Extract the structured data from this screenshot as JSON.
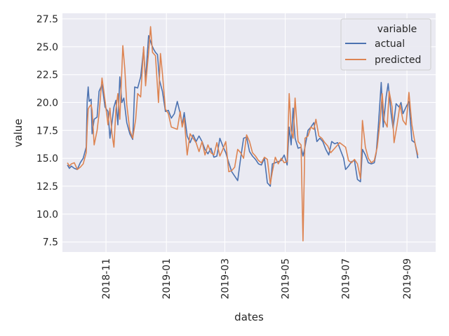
{
  "chart_data": {
    "type": "line",
    "xlabel": "dates",
    "ylabel": "value",
    "x_ticks": [
      "2018-11",
      "2019-01",
      "2019-03",
      "2019-05",
      "2019-07",
      "2019-09"
    ],
    "x_tick_dates": [
      "2018-11-01",
      "2019-01-01",
      "2019-03-01",
      "2019-05-01",
      "2019-07-01",
      "2019-09-01"
    ],
    "y_ticks": [
      7.5,
      10.0,
      12.5,
      15.0,
      17.5,
      20.0,
      22.5,
      25.0,
      27.5
    ],
    "xlim": [
      "2018-09-18",
      "2019-09-30"
    ],
    "ylim": [
      6.6,
      28.0
    ],
    "grid": true,
    "legend": {
      "title": "variable",
      "position": "top-right"
    },
    "series": [
      {
        "name": "actual",
        "color": "#4c72b0",
        "points": [
          [
            "2018-09-23",
            14.4
          ],
          [
            "2018-09-25",
            14.1
          ],
          [
            "2018-09-27",
            14.3
          ],
          [
            "2018-09-30",
            14.1
          ],
          [
            "2018-10-03",
            14.0
          ],
          [
            "2018-10-06",
            14.6
          ],
          [
            "2018-10-09",
            15.0
          ],
          [
            "2018-10-12",
            16.0
          ],
          [
            "2018-10-13",
            20.2
          ],
          [
            "2018-10-14",
            21.4
          ],
          [
            "2018-10-15",
            20.1
          ],
          [
            "2018-10-17",
            20.3
          ],
          [
            "2018-10-18",
            17.2
          ],
          [
            "2018-10-20",
            18.5
          ],
          [
            "2018-10-23",
            18.7
          ],
          [
            "2018-10-25",
            21.0
          ],
          [
            "2018-10-28",
            21.6
          ],
          [
            "2018-10-31",
            19.6
          ],
          [
            "2018-11-03",
            19.2
          ],
          [
            "2018-11-05",
            16.8
          ],
          [
            "2018-11-07",
            18.2
          ],
          [
            "2018-11-09",
            19.6
          ],
          [
            "2018-11-11",
            20.2
          ],
          [
            "2018-11-13",
            18.0
          ],
          [
            "2018-11-15",
            22.3
          ],
          [
            "2018-11-17",
            20.0
          ],
          [
            "2018-11-19",
            20.4
          ],
          [
            "2018-11-22",
            18.2
          ],
          [
            "2018-11-25",
            17.2
          ],
          [
            "2018-11-28",
            16.7
          ],
          [
            "2018-11-30",
            21.4
          ],
          [
            "2018-12-03",
            21.3
          ],
          [
            "2018-12-06",
            22.3
          ],
          [
            "2018-12-09",
            24.8
          ],
          [
            "2018-12-11",
            22.0
          ],
          [
            "2018-12-14",
            26.0
          ],
          [
            "2018-12-17",
            25.2
          ],
          [
            "2018-12-19",
            24.8
          ],
          [
            "2018-12-21",
            24.5
          ],
          [
            "2018-12-23",
            24.3
          ],
          [
            "2018-12-25",
            22.0
          ],
          [
            "2018-12-28",
            21.0
          ],
          [
            "2018-12-31",
            19.2
          ],
          [
            "2019-01-03",
            19.3
          ],
          [
            "2019-01-06",
            18.6
          ],
          [
            "2019-01-09",
            19.0
          ],
          [
            "2019-01-12",
            20.1
          ],
          [
            "2019-01-15",
            19.0
          ],
          [
            "2019-01-17",
            18.0
          ],
          [
            "2019-01-19",
            19.1
          ],
          [
            "2019-01-22",
            17.0
          ],
          [
            "2019-01-25",
            16.4
          ],
          [
            "2019-01-28",
            17.1
          ],
          [
            "2019-01-31",
            16.5
          ],
          [
            "2019-02-03",
            17.0
          ],
          [
            "2019-02-06",
            16.5
          ],
          [
            "2019-02-09",
            15.8
          ],
          [
            "2019-02-12",
            15.4
          ],
          [
            "2019-02-15",
            15.9
          ],
          [
            "2019-02-18",
            15.1
          ],
          [
            "2019-02-21",
            15.2
          ],
          [
            "2019-02-24",
            16.8
          ],
          [
            "2019-02-27",
            16.1
          ],
          [
            "2019-03-02",
            15.5
          ],
          [
            "2019-03-05",
            14.6
          ],
          [
            "2019-03-08",
            13.8
          ],
          [
            "2019-03-11",
            13.4
          ],
          [
            "2019-03-14",
            13.0
          ],
          [
            "2019-03-17",
            15.0
          ],
          [
            "2019-03-20",
            16.8
          ],
          [
            "2019-03-23",
            16.9
          ],
          [
            "2019-03-26",
            15.6
          ],
          [
            "2019-03-29",
            15.2
          ],
          [
            "2019-04-01",
            14.9
          ],
          [
            "2019-04-04",
            14.5
          ],
          [
            "2019-04-07",
            14.4
          ],
          [
            "2019-04-10",
            15.0
          ],
          [
            "2019-04-13",
            12.8
          ],
          [
            "2019-04-16",
            12.5
          ],
          [
            "2019-04-18",
            14.5
          ],
          [
            "2019-04-21",
            14.6
          ],
          [
            "2019-04-24",
            14.7
          ],
          [
            "2019-04-27",
            14.8
          ],
          [
            "2019-04-30",
            15.3
          ],
          [
            "2019-05-03",
            14.4
          ],
          [
            "2019-05-05",
            17.8
          ],
          [
            "2019-05-07",
            16.2
          ],
          [
            "2019-05-09",
            19.5
          ],
          [
            "2019-05-11",
            16.8
          ],
          [
            "2019-05-14",
            15.9
          ],
          [
            "2019-05-17",
            16.0
          ],
          [
            "2019-05-19",
            15.2
          ],
          [
            "2019-05-21",
            16.0
          ],
          [
            "2019-05-24",
            17.5
          ],
          [
            "2019-05-27",
            17.8
          ],
          [
            "2019-05-30",
            18.2
          ],
          [
            "2019-06-02",
            16.5
          ],
          [
            "2019-06-05",
            16.8
          ],
          [
            "2019-06-08",
            16.5
          ],
          [
            "2019-06-11",
            15.8
          ],
          [
            "2019-06-14",
            15.3
          ],
          [
            "2019-06-17",
            16.5
          ],
          [
            "2019-06-20",
            16.3
          ],
          [
            "2019-06-23",
            16.4
          ],
          [
            "2019-06-26",
            15.7
          ],
          [
            "2019-06-29",
            15.0
          ],
          [
            "2019-07-01",
            14.0
          ],
          [
            "2019-07-04",
            14.3
          ],
          [
            "2019-07-07",
            14.7
          ],
          [
            "2019-07-10",
            14.8
          ],
          [
            "2019-07-13",
            13.1
          ],
          [
            "2019-07-16",
            12.9
          ],
          [
            "2019-07-18",
            15.8
          ],
          [
            "2019-07-21",
            15.3
          ],
          [
            "2019-07-24",
            14.6
          ],
          [
            "2019-07-27",
            14.5
          ],
          [
            "2019-07-30",
            14.6
          ],
          [
            "2019-08-01",
            15.5
          ],
          [
            "2019-08-03",
            17.8
          ],
          [
            "2019-08-06",
            21.8
          ],
          [
            "2019-08-08",
            17.8
          ],
          [
            "2019-08-11",
            20.5
          ],
          [
            "2019-08-13",
            21.7
          ],
          [
            "2019-08-16",
            19.0
          ],
          [
            "2019-08-18",
            17.7
          ],
          [
            "2019-08-21",
            19.9
          ],
          [
            "2019-08-24",
            19.6
          ],
          [
            "2019-08-26",
            20.0
          ],
          [
            "2019-08-28",
            19.0
          ],
          [
            "2019-08-31",
            19.6
          ],
          [
            "2019-09-03",
            20.1
          ],
          [
            "2019-09-06",
            16.6
          ],
          [
            "2019-09-09",
            16.4
          ],
          [
            "2019-09-12",
            15.0
          ]
        ]
      },
      {
        "name": "predicted",
        "color": "#dd8452",
        "points": [
          [
            "2018-09-23",
            14.6
          ],
          [
            "2018-09-25",
            14.3
          ],
          [
            "2018-09-27",
            14.5
          ],
          [
            "2018-09-30",
            14.6
          ],
          [
            "2018-10-03",
            14.0
          ],
          [
            "2018-10-06",
            14.2
          ],
          [
            "2018-10-09",
            14.5
          ],
          [
            "2018-10-12",
            15.5
          ],
          [
            "2018-10-13",
            17.8
          ],
          [
            "2018-10-14",
            19.4
          ],
          [
            "2018-10-15",
            19.6
          ],
          [
            "2018-10-17",
            19.8
          ],
          [
            "2018-10-18",
            19.3
          ],
          [
            "2018-10-20",
            16.2
          ],
          [
            "2018-10-23",
            17.5
          ],
          [
            "2018-10-25",
            19.0
          ],
          [
            "2018-10-28",
            22.2
          ],
          [
            "2018-10-31",
            20.2
          ],
          [
            "2018-11-03",
            18.0
          ],
          [
            "2018-11-05",
            19.5
          ],
          [
            "2018-11-07",
            17.2
          ],
          [
            "2018-11-09",
            16.0
          ],
          [
            "2018-11-11",
            19.4
          ],
          [
            "2018-11-13",
            20.8
          ],
          [
            "2018-11-15",
            18.5
          ],
          [
            "2018-11-18",
            25.1
          ],
          [
            "2018-11-20",
            23.0
          ],
          [
            "2018-11-22",
            19.8
          ],
          [
            "2018-11-25",
            17.5
          ],
          [
            "2018-11-28",
            16.8
          ],
          [
            "2018-12-01",
            18.5
          ],
          [
            "2018-12-03",
            20.8
          ],
          [
            "2018-12-06",
            20.5
          ],
          [
            "2018-12-09",
            25.0
          ],
          [
            "2018-12-11",
            21.5
          ],
          [
            "2018-12-14",
            24.5
          ],
          [
            "2018-12-16",
            26.8
          ],
          [
            "2018-12-18",
            24.5
          ],
          [
            "2018-12-21",
            24.2
          ],
          [
            "2018-12-24",
            20.0
          ],
          [
            "2018-12-26",
            24.4
          ],
          [
            "2018-12-28",
            22.6
          ],
          [
            "2018-12-31",
            19.4
          ],
          [
            "2019-01-03",
            19.0
          ],
          [
            "2019-01-06",
            17.8
          ],
          [
            "2019-01-09",
            17.7
          ],
          [
            "2019-01-12",
            17.6
          ],
          [
            "2019-01-15",
            19.2
          ],
          [
            "2019-01-17",
            17.8
          ],
          [
            "2019-01-19",
            18.6
          ],
          [
            "2019-01-22",
            15.3
          ],
          [
            "2019-01-25",
            17.2
          ],
          [
            "2019-01-28",
            16.8
          ],
          [
            "2019-01-31",
            16.4
          ],
          [
            "2019-02-03",
            15.6
          ],
          [
            "2019-02-06",
            16.5
          ],
          [
            "2019-02-09",
            15.3
          ],
          [
            "2019-02-12",
            16.2
          ],
          [
            "2019-02-15",
            15.5
          ],
          [
            "2019-02-18",
            15.3
          ],
          [
            "2019-02-21",
            16.4
          ],
          [
            "2019-02-24",
            15.2
          ],
          [
            "2019-02-27",
            15.8
          ],
          [
            "2019-03-02",
            16.5
          ],
          [
            "2019-03-05",
            13.8
          ],
          [
            "2019-03-08",
            13.9
          ],
          [
            "2019-03-11",
            14.2
          ],
          [
            "2019-03-14",
            15.8
          ],
          [
            "2019-03-17",
            15.5
          ],
          [
            "2019-03-20",
            15.0
          ],
          [
            "2019-03-23",
            17.1
          ],
          [
            "2019-03-26",
            16.5
          ],
          [
            "2019-03-29",
            15.5
          ],
          [
            "2019-04-01",
            15.2
          ],
          [
            "2019-04-04",
            14.8
          ],
          [
            "2019-04-07",
            14.6
          ],
          [
            "2019-04-10",
            15.1
          ],
          [
            "2019-04-13",
            14.9
          ],
          [
            "2019-04-16",
            12.7
          ],
          [
            "2019-04-18",
            13.8
          ],
          [
            "2019-04-21",
            15.1
          ],
          [
            "2019-04-24",
            14.5
          ],
          [
            "2019-04-27",
            15.0
          ],
          [
            "2019-04-30",
            14.6
          ],
          [
            "2019-05-03",
            14.7
          ],
          [
            "2019-05-05",
            20.8
          ],
          [
            "2019-05-07",
            17.5
          ],
          [
            "2019-05-09",
            16.8
          ],
          [
            "2019-05-11",
            20.4
          ],
          [
            "2019-05-14",
            16.5
          ],
          [
            "2019-05-17",
            16.2
          ],
          [
            "2019-05-19",
            7.6
          ],
          [
            "2019-05-21",
            16.8
          ],
          [
            "2019-05-24",
            17.0
          ],
          [
            "2019-05-27",
            17.8
          ],
          [
            "2019-05-30",
            17.6
          ],
          [
            "2019-06-01",
            18.5
          ],
          [
            "2019-06-04",
            17.0
          ],
          [
            "2019-06-07",
            16.8
          ],
          [
            "2019-06-10",
            16.4
          ],
          [
            "2019-06-13",
            16.1
          ],
          [
            "2019-06-16",
            15.5
          ],
          [
            "2019-06-19",
            15.8
          ],
          [
            "2019-06-22",
            16.1
          ],
          [
            "2019-06-25",
            16.4
          ],
          [
            "2019-06-28",
            16.2
          ],
          [
            "2019-07-01",
            16.0
          ],
          [
            "2019-07-04",
            14.8
          ],
          [
            "2019-07-07",
            14.6
          ],
          [
            "2019-07-10",
            14.9
          ],
          [
            "2019-07-13",
            14.5
          ],
          [
            "2019-07-16",
            13.2
          ],
          [
            "2019-07-18",
            18.4
          ],
          [
            "2019-07-21",
            16.0
          ],
          [
            "2019-07-24",
            15.0
          ],
          [
            "2019-07-27",
            14.6
          ],
          [
            "2019-07-30",
            14.8
          ],
          [
            "2019-08-02",
            16.0
          ],
          [
            "2019-08-05",
            18.5
          ],
          [
            "2019-08-07",
            20.8
          ],
          [
            "2019-08-09",
            18.4
          ],
          [
            "2019-08-12",
            17.8
          ],
          [
            "2019-08-14",
            21.0
          ],
          [
            "2019-08-17",
            19.6
          ],
          [
            "2019-08-19",
            16.4
          ],
          [
            "2019-08-22",
            18.0
          ],
          [
            "2019-08-25",
            19.8
          ],
          [
            "2019-08-28",
            18.4
          ],
          [
            "2019-08-31",
            18.0
          ],
          [
            "2019-09-03",
            20.9
          ],
          [
            "2019-09-06",
            18.0
          ],
          [
            "2019-09-09",
            16.4
          ],
          [
            "2019-09-12",
            15.3
          ]
        ]
      }
    ]
  }
}
